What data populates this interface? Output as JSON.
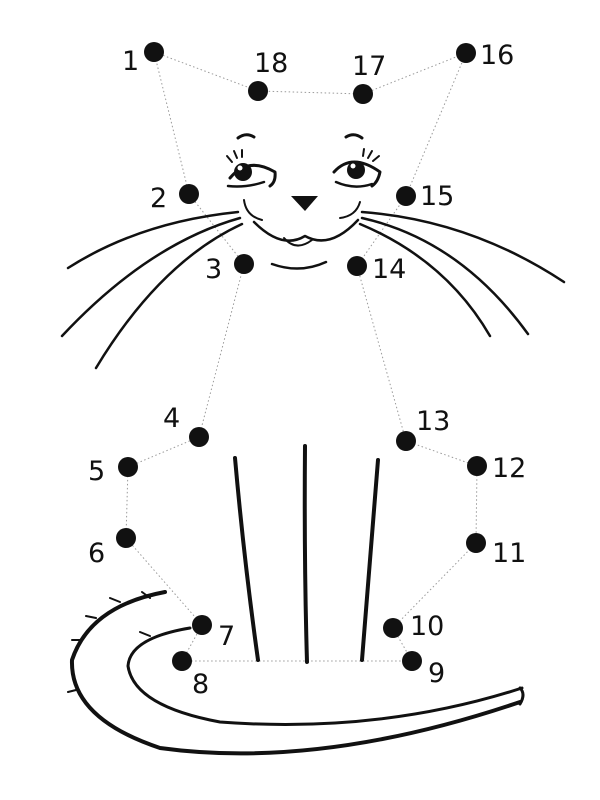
{
  "colors": {
    "ink": "#111111",
    "guide": "#9a9a9a",
    "paper": "#ffffff"
  },
  "dots": [
    {
      "n": "1"
    },
    {
      "n": "2"
    },
    {
      "n": "3"
    },
    {
      "n": "4"
    },
    {
      "n": "5"
    },
    {
      "n": "6"
    },
    {
      "n": "7"
    },
    {
      "n": "8"
    },
    {
      "n": "9"
    },
    {
      "n": "10"
    },
    {
      "n": "11"
    },
    {
      "n": "12"
    },
    {
      "n": "13"
    },
    {
      "n": "14"
    },
    {
      "n": "15"
    },
    {
      "n": "16"
    },
    {
      "n": "17"
    },
    {
      "n": "18"
    }
  ]
}
